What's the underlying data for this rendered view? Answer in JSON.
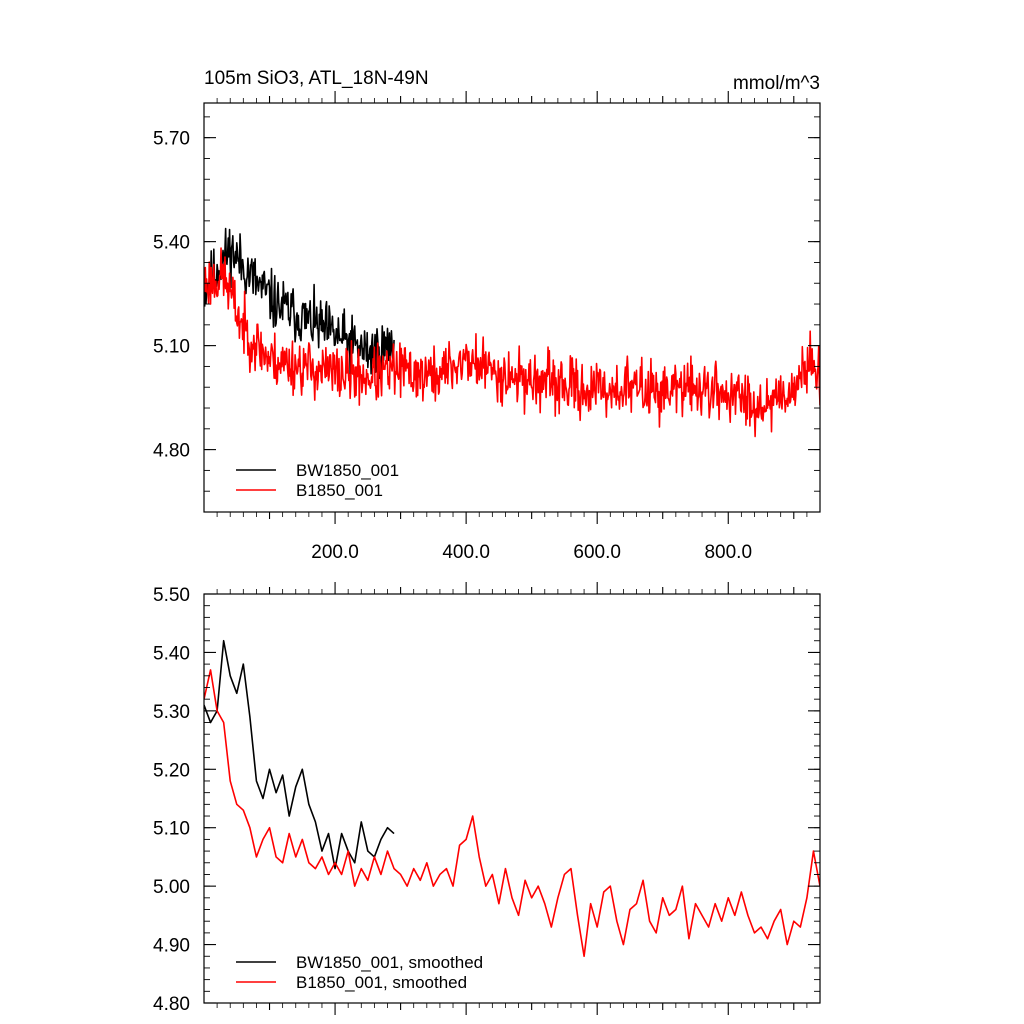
{
  "chart_data": [
    {
      "type": "line",
      "title": "105m SiO3, ATL_18N-49N",
      "units": "mmol/m^3",
      "xlim": [
        0,
        940
      ],
      "ylim": [
        4.62,
        5.8
      ],
      "yticks": [
        "4.80",
        "5.10",
        "5.40",
        "5.70"
      ],
      "xticks": [
        "200.0",
        "400.0",
        "600.0",
        "800.0"
      ],
      "legend": "bottom-left",
      "series": [
        {
          "name": "BW1850_001",
          "color": "#000000",
          "x_start": 1,
          "x_end": 290,
          "trend": [
            [
              0,
              5.26
            ],
            [
              40,
              5.38
            ],
            [
              80,
              5.28
            ],
            [
              110,
              5.22
            ],
            [
              160,
              5.17
            ],
            [
              200,
              5.13
            ],
            [
              250,
              5.08
            ],
            [
              290,
              5.1
            ]
          ],
          "noise": 0.12,
          "ymin": 4.92,
          "ymax": 5.58,
          "seed": 11
        },
        {
          "name": "B1850_001",
          "color": "#ff0000",
          "x_start": 1,
          "x_end": 940,
          "trend": [
            [
              0,
              5.28
            ],
            [
              30,
              5.3
            ],
            [
              60,
              5.15
            ],
            [
              100,
              5.06
            ],
            [
              150,
              5.04
            ],
            [
              200,
              5.02
            ],
            [
              250,
              5.01
            ],
            [
              300,
              5.03
            ],
            [
              350,
              5.01
            ],
            [
              400,
              5.06
            ],
            [
              450,
              5.02
            ],
            [
              500,
              5.0
            ],
            [
              560,
              4.98
            ],
            [
              600,
              4.97
            ],
            [
              650,
              4.98
            ],
            [
              700,
              4.97
            ],
            [
              750,
              4.98
            ],
            [
              800,
              4.96
            ],
            [
              850,
              4.93
            ],
            [
              900,
              4.98
            ],
            [
              930,
              5.06
            ],
            [
              940,
              5.02
            ]
          ],
          "noise": 0.12,
          "ymin": 4.64,
          "ymax": 5.67,
          "seed": 23
        }
      ]
    },
    {
      "type": "line",
      "title": "",
      "xlim": [
        0,
        940
      ],
      "ylim": [
        4.8,
        5.5
      ],
      "yticks": [
        "4.80",
        "4.90",
        "5.00",
        "5.10",
        "5.20",
        "5.30",
        "5.40",
        "5.50"
      ],
      "legend": "bottom-left",
      "series": [
        {
          "name": "BW1850_001, smoothed",
          "color": "#000000",
          "x": [
            0,
            10,
            20,
            30,
            40,
            50,
            60,
            70,
            80,
            90,
            100,
            110,
            120,
            130,
            140,
            150,
            160,
            170,
            180,
            190,
            200,
            210,
            220,
            230,
            240,
            250,
            260,
            270,
            280,
            290
          ],
          "values": [
            5.31,
            5.28,
            5.3,
            5.42,
            5.36,
            5.33,
            5.38,
            5.29,
            5.18,
            5.15,
            5.2,
            5.16,
            5.19,
            5.12,
            5.17,
            5.2,
            5.14,
            5.11,
            5.06,
            5.09,
            5.03,
            5.09,
            5.06,
            5.04,
            5.11,
            5.06,
            5.05,
            5.08,
            5.1,
            5.09
          ]
        },
        {
          "name": "B1850_001, smoothed",
          "color": "#ff0000",
          "x": [
            0,
            10,
            20,
            30,
            40,
            50,
            60,
            70,
            80,
            90,
            100,
            110,
            120,
            130,
            140,
            150,
            160,
            170,
            180,
            190,
            200,
            210,
            220,
            230,
            240,
            250,
            260,
            270,
            280,
            290,
            300,
            310,
            320,
            330,
            340,
            350,
            360,
            370,
            380,
            390,
            400,
            410,
            420,
            430,
            440,
            450,
            460,
            470,
            480,
            490,
            500,
            510,
            520,
            530,
            540,
            550,
            560,
            570,
            580,
            590,
            600,
            610,
            620,
            630,
            640,
            650,
            660,
            670,
            680,
            690,
            700,
            710,
            720,
            730,
            740,
            750,
            760,
            770,
            780,
            790,
            800,
            810,
            820,
            830,
            840,
            850,
            860,
            870,
            880,
            890,
            900,
            910,
            920,
            930,
            940
          ],
          "values": [
            5.32,
            5.37,
            5.3,
            5.28,
            5.18,
            5.14,
            5.13,
            5.1,
            5.05,
            5.08,
            5.1,
            5.05,
            5.04,
            5.09,
            5.05,
            5.08,
            5.04,
            5.03,
            5.05,
            5.02,
            5.04,
            5.02,
            5.06,
            5.0,
            5.03,
            5.01,
            5.05,
            5.02,
            5.06,
            5.03,
            5.02,
            5.0,
            5.03,
            5.01,
            5.04,
            5.0,
            5.02,
            5.03,
            5.0,
            5.07,
            5.08,
            5.12,
            5.05,
            5.0,
            5.02,
            4.97,
            5.03,
            4.98,
            4.95,
            5.01,
            4.98,
            5.0,
            4.97,
            4.93,
            4.98,
            5.02,
            5.03,
            4.95,
            4.88,
            4.97,
            4.93,
            4.99,
            5.0,
            4.94,
            4.9,
            4.96,
            4.97,
            5.01,
            4.94,
            4.92,
            4.98,
            4.95,
            4.96,
            5.0,
            4.91,
            4.97,
            4.95,
            4.93,
            4.97,
            4.94,
            4.98,
            4.95,
            4.99,
            4.95,
            4.92,
            4.93,
            4.91,
            4.94,
            4.96,
            4.9,
            4.94,
            4.93,
            4.98,
            5.06,
            5.0
          ]
        }
      ]
    }
  ]
}
